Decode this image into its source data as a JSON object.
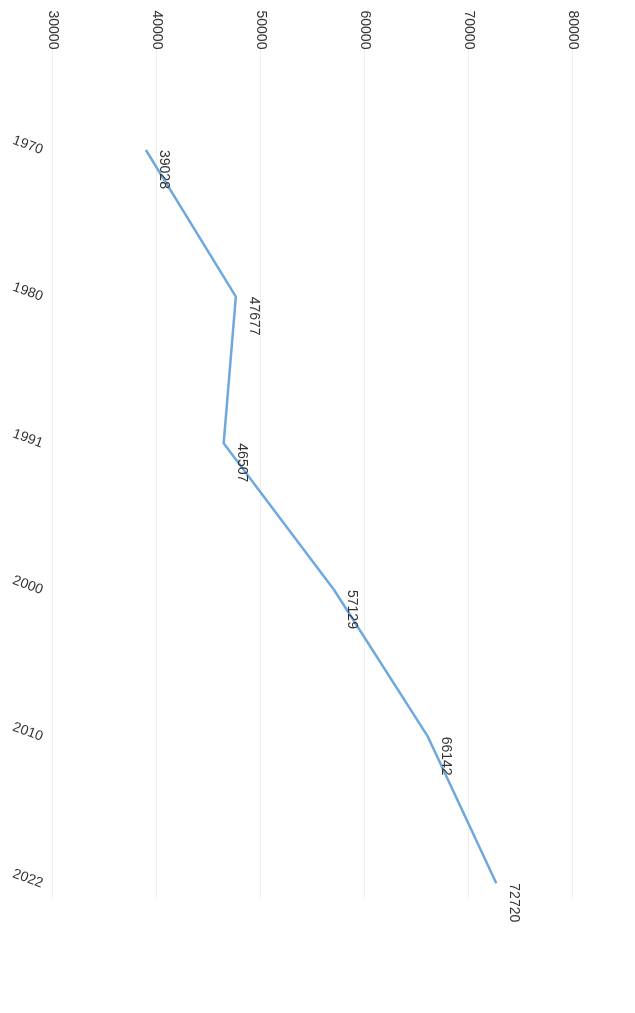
{
  "chart_data": {
    "type": "line",
    "orientation": "horizontal",
    "categories": [
      "1970",
      "1980",
      "1991",
      "2000",
      "2010",
      "2022"
    ],
    "series": [
      {
        "color": "#6fa8dc",
        "values": [
          39028,
          47677,
          46507,
          57129,
          66142,
          72720
        ]
      }
    ],
    "xlim": [
      30000,
      80000
    ],
    "xticks": [
      30000,
      40000,
      50000,
      60000,
      70000,
      80000
    ],
    "grid": "x",
    "data_labels": true,
    "marker": "none",
    "line_style": "solid"
  }
}
